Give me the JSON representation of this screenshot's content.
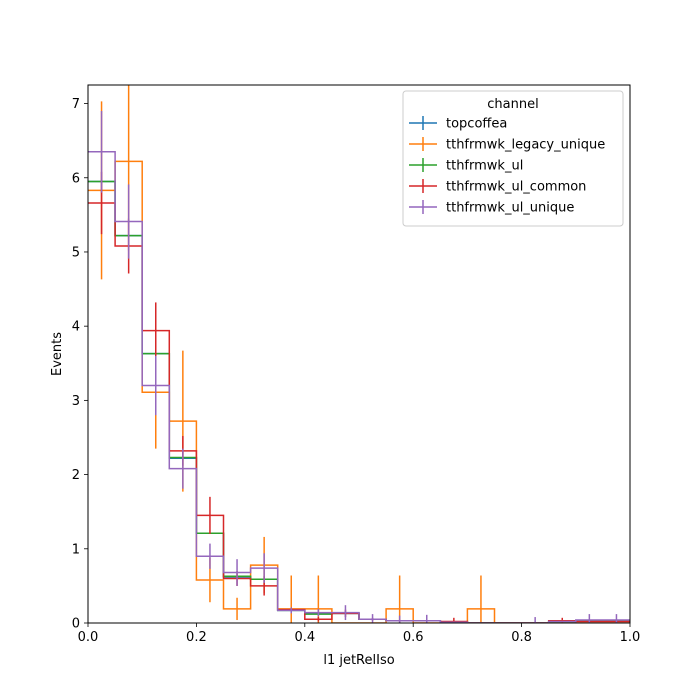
{
  "chart_data": {
    "type": "step",
    "xlabel": "l1 jetRelIso",
    "ylabel": "Events",
    "xlim": [
      0.0,
      1.0
    ],
    "ylim": [
      0.0,
      7.25
    ],
    "xticks": [
      "0.0",
      "0.2",
      "0.4",
      "0.6",
      "0.8",
      "1.0"
    ],
    "yticks": [
      "0",
      "1",
      "2",
      "3",
      "4",
      "5",
      "6",
      "7"
    ],
    "bin_edges": [
      0.0,
      0.05,
      0.1,
      0.15,
      0.2,
      0.25,
      0.3,
      0.35,
      0.4,
      0.45,
      0.5,
      0.55,
      0.6,
      0.65,
      0.7,
      0.75,
      0.8,
      0.85,
      0.9,
      0.95,
      1.0
    ],
    "legend": {
      "title": "channel",
      "position": "top-right"
    },
    "series": [
      {
        "name": "topcoffea",
        "color": "#1f77b4",
        "values": [
          5.95,
          5.22,
          3.63,
          2.22,
          1.21,
          0.62,
          0.59,
          0.17,
          0.13,
          0.13,
          0.05,
          0.03,
          0.03,
          0.01,
          0.0,
          0.0,
          0.0,
          0.02,
          0.03,
          0.03
        ],
        "errors": [
          0.0,
          0.0,
          0.0,
          0.0,
          0.0,
          0.0,
          0.0,
          0.0,
          0.0,
          0.0,
          0.0,
          0.0,
          0.0,
          0.0,
          0.0,
          0.0,
          0.0,
          0.0,
          0.0,
          0.0
        ]
      },
      {
        "name": "tthfrmwk_legacy_unique",
        "color": "#ff7f0e",
        "values": [
          5.83,
          6.22,
          3.11,
          2.72,
          0.58,
          0.19,
          0.78,
          0.19,
          0.19,
          0.0,
          0.0,
          0.19,
          0.0,
          0.0,
          0.19,
          0.0,
          0.0,
          0.0,
          0.0,
          0.0
        ],
        "errors": [
          1.2,
          1.2,
          0.76,
          0.95,
          0.3,
          0.15,
          0.38,
          0.45,
          0.45,
          0.0,
          0.0,
          0.45,
          0.0,
          0.0,
          0.45,
          0.0,
          0.0,
          0.0,
          0.0,
          0.0
        ]
      },
      {
        "name": "tthfrmwk_ul",
        "color": "#2ca02c",
        "values": [
          5.95,
          5.22,
          3.63,
          2.23,
          1.21,
          0.63,
          0.59,
          0.17,
          0.12,
          0.13,
          0.05,
          0.03,
          0.03,
          0.01,
          0.0,
          0.0,
          0.0,
          0.02,
          0.03,
          0.03
        ],
        "errors": [
          0.0,
          0.0,
          0.0,
          0.0,
          0.0,
          0.0,
          0.0,
          0.0,
          0.0,
          0.0,
          0.0,
          0.0,
          0.0,
          0.0,
          0.0,
          0.0,
          0.0,
          0.0,
          0.0,
          0.0
        ]
      },
      {
        "name": "tthfrmwk_ul_common",
        "color": "#d62728",
        "values": [
          5.66,
          5.08,
          3.94,
          2.32,
          1.45,
          0.6,
          0.5,
          0.18,
          0.05,
          0.13,
          0.05,
          0.03,
          0.03,
          0.02,
          0.0,
          0.0,
          0.0,
          0.03,
          0.02,
          0.02
        ],
        "errors": [
          0.42,
          0.37,
          0.38,
          0.2,
          0.25,
          0.1,
          0.13,
          0.03,
          0.03,
          0.05,
          0.02,
          0.01,
          0.01,
          0.05,
          0.0,
          0.0,
          0.0,
          0.04,
          0.01,
          0.01
        ]
      },
      {
        "name": "tthfrmwk_ul_unique",
        "color": "#9467bd",
        "values": [
          6.35,
          5.41,
          3.2,
          2.08,
          0.9,
          0.68,
          0.74,
          0.17,
          0.14,
          0.14,
          0.05,
          0.03,
          0.03,
          0.01,
          0.0,
          0.0,
          0.0,
          0.02,
          0.04,
          0.04
        ],
        "errors": [
          0.55,
          0.5,
          0.4,
          0.27,
          0.17,
          0.18,
          0.2,
          0.04,
          0.05,
          0.1,
          0.07,
          0.07,
          0.08,
          0.0,
          0.0,
          0.0,
          0.08,
          0.0,
          0.08,
          0.08
        ]
      }
    ]
  }
}
